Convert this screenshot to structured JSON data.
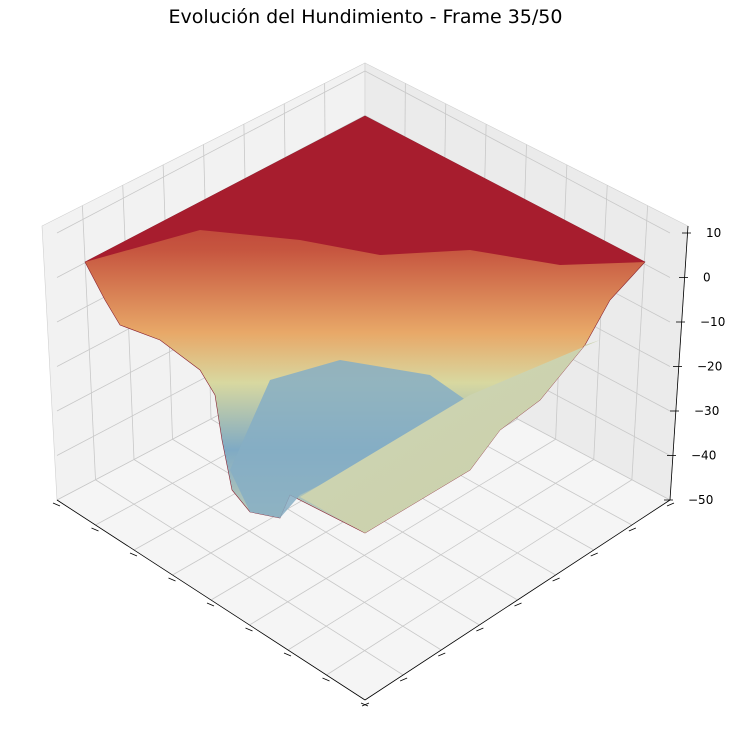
{
  "chart_data": {
    "type": "surface3d",
    "title": "Evolución del Hundimiento - Frame 35/50",
    "xlabel": "",
    "ylabel": "",
    "zlabel": "",
    "zlim": [
      -50,
      10
    ],
    "zticks": [
      "10",
      "0",
      "−10",
      "−20",
      "−30",
      "−40",
      "−50"
    ],
    "x_tick_labels": [],
    "y_tick_labels": [],
    "grid": true,
    "view": "isometric",
    "colormap": [
      "#a50f26",
      "#c6553f",
      "#e8a868",
      "#d8d8a0",
      "#7faac4",
      "#ccd3b2"
    ],
    "surface": {
      "plateau_z": 5,
      "max_depth_z": -40,
      "shelf_z": -33,
      "description_regions": {
        "top": "flat plateau near z=5",
        "center": "deep basin near z=-40",
        "lower-right": "flat shelf near z=-33"
      }
    }
  }
}
